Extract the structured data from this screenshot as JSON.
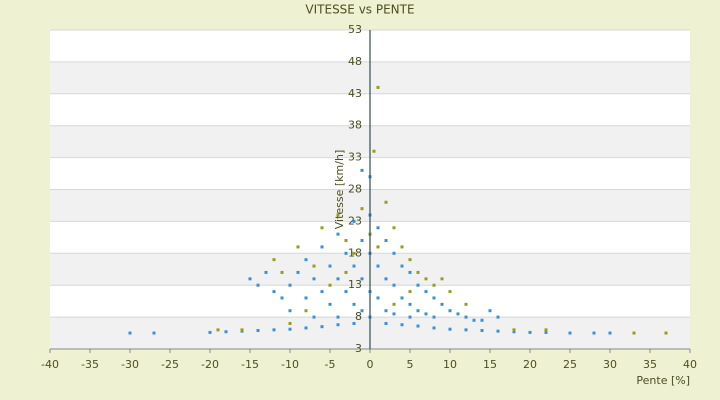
{
  "chart_data": {
    "type": "scatter",
    "title": "VITESSE vs PENTE",
    "x_label": "Pente [%]",
    "y_label": "Vitesse [km/h]",
    "xlim": [
      -40,
      40
    ],
    "xticks": [
      -40,
      -35,
      -30,
      -25,
      -20,
      -15,
      -10,
      -5,
      0,
      5,
      10,
      15,
      20,
      25,
      30,
      35,
      40
    ],
    "ylim": [
      3,
      53
    ],
    "yticks": [
      3,
      8,
      13,
      18,
      23,
      28,
      33,
      38,
      43,
      48,
      53
    ],
    "grid": true,
    "series": [
      {
        "color": "#3a8fd8",
        "x": [
          -20,
          -18,
          -16,
          -14,
          -12,
          -10,
          -8,
          -6,
          -4,
          -2,
          2,
          4,
          6,
          8,
          10,
          12,
          14,
          16,
          18,
          20,
          22,
          25,
          28,
          -30,
          -27,
          30,
          -15,
          -14,
          -13,
          -12,
          -11,
          -10,
          -10,
          -9,
          -8,
          -8,
          -7,
          -7,
          -6,
          -6,
          -5,
          -5,
          -4,
          -4,
          -4,
          -3,
          -3,
          -2,
          -2,
          -2,
          -1,
          -1,
          -1,
          0,
          0,
          0,
          0,
          1,
          1,
          1,
          2,
          2,
          2,
          3,
          3,
          3,
          4,
          4,
          5,
          5,
          5,
          6,
          6,
          7,
          7,
          8,
          8,
          9,
          10,
          11,
          12,
          13,
          14,
          15,
          16,
          -1,
          0
        ],
        "values": [
          5.6,
          5.7,
          5.8,
          5.9,
          6,
          6.1,
          6.3,
          6.5,
          6.8,
          7,
          7,
          6.8,
          6.6,
          6.3,
          6.1,
          6,
          5.9,
          5.8,
          5.7,
          5.6,
          5.6,
          5.5,
          5.5,
          5.5,
          5.5,
          5.5,
          14,
          13,
          15,
          12,
          11,
          13,
          9,
          15,
          17,
          11,
          14,
          8,
          19,
          12,
          16,
          10,
          21,
          14,
          8,
          18,
          12,
          23,
          16,
          10,
          20,
          14,
          9,
          24,
          18,
          12,
          8,
          22,
          16,
          11,
          20,
          14,
          9,
          18,
          13,
          8.5,
          16,
          11,
          15,
          10,
          8,
          13,
          9,
          12,
          8.5,
          11,
          8,
          10,
          9,
          8.5,
          8,
          7.5,
          7.5,
          9,
          8,
          31,
          30
        ]
      },
      {
        "color": "#9a9a1e",
        "x": [
          -12,
          -11,
          -9,
          -7,
          -6,
          -5,
          -4,
          -3,
          -2,
          -1,
          0,
          1,
          1,
          0.5,
          2,
          3,
          4,
          5,
          6,
          7,
          8,
          9,
          10,
          12,
          -8,
          -10,
          -16,
          -19,
          18,
          22,
          33,
          37,
          3,
          5,
          -3
        ],
        "values": [
          17,
          15,
          19,
          16,
          22,
          13,
          24,
          20,
          18,
          25,
          21,
          19,
          44,
          34,
          26,
          22,
          19,
          17,
          15,
          14,
          13,
          14,
          12,
          10,
          9,
          7,
          6,
          6,
          6,
          6,
          5.5,
          5.5,
          10,
          12,
          15
        ]
      }
    ]
  }
}
